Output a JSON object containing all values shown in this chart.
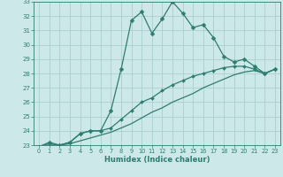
{
  "xlabel": "Humidex (Indice chaleur)",
  "x": [
    0,
    1,
    2,
    3,
    4,
    5,
    6,
    7,
    8,
    9,
    10,
    11,
    12,
    13,
    14,
    15,
    16,
    17,
    18,
    19,
    20,
    21,
    22,
    23
  ],
  "line1_y": [
    22.9,
    23.2,
    23.0,
    23.2,
    23.8,
    24.0,
    24.0,
    25.4,
    28.3,
    31.7,
    32.3,
    30.8,
    31.8,
    33.0,
    32.2,
    31.2,
    31.4,
    30.5,
    29.2,
    28.8,
    29.0,
    28.5,
    28.0,
    28.3
  ],
  "line2_y": [
    22.9,
    23.1,
    23.0,
    23.2,
    23.8,
    24.0,
    24.0,
    24.2,
    24.8,
    25.4,
    26.0,
    26.3,
    26.8,
    27.2,
    27.5,
    27.8,
    28.0,
    28.2,
    28.4,
    28.5,
    28.5,
    28.3,
    28.0,
    28.3
  ],
  "line3_y": [
    22.9,
    23.0,
    23.0,
    23.1,
    23.3,
    23.5,
    23.7,
    23.9,
    24.2,
    24.5,
    24.9,
    25.3,
    25.6,
    26.0,
    26.3,
    26.6,
    27.0,
    27.3,
    27.6,
    27.9,
    28.1,
    28.2,
    28.0,
    28.3
  ],
  "line_color": "#2e7d70",
  "bg_color": "#cce8e8",
  "grid_color": "#aacece",
  "ylim": [
    23,
    33
  ],
  "xlim": [
    -0.5,
    23.5
  ],
  "yticks": [
    23,
    24,
    25,
    26,
    27,
    28,
    29,
    30,
    31,
    32,
    33
  ],
  "xticks": [
    0,
    1,
    2,
    3,
    4,
    5,
    6,
    7,
    8,
    9,
    10,
    11,
    12,
    13,
    14,
    15,
    16,
    17,
    18,
    19,
    20,
    21,
    22,
    23
  ]
}
